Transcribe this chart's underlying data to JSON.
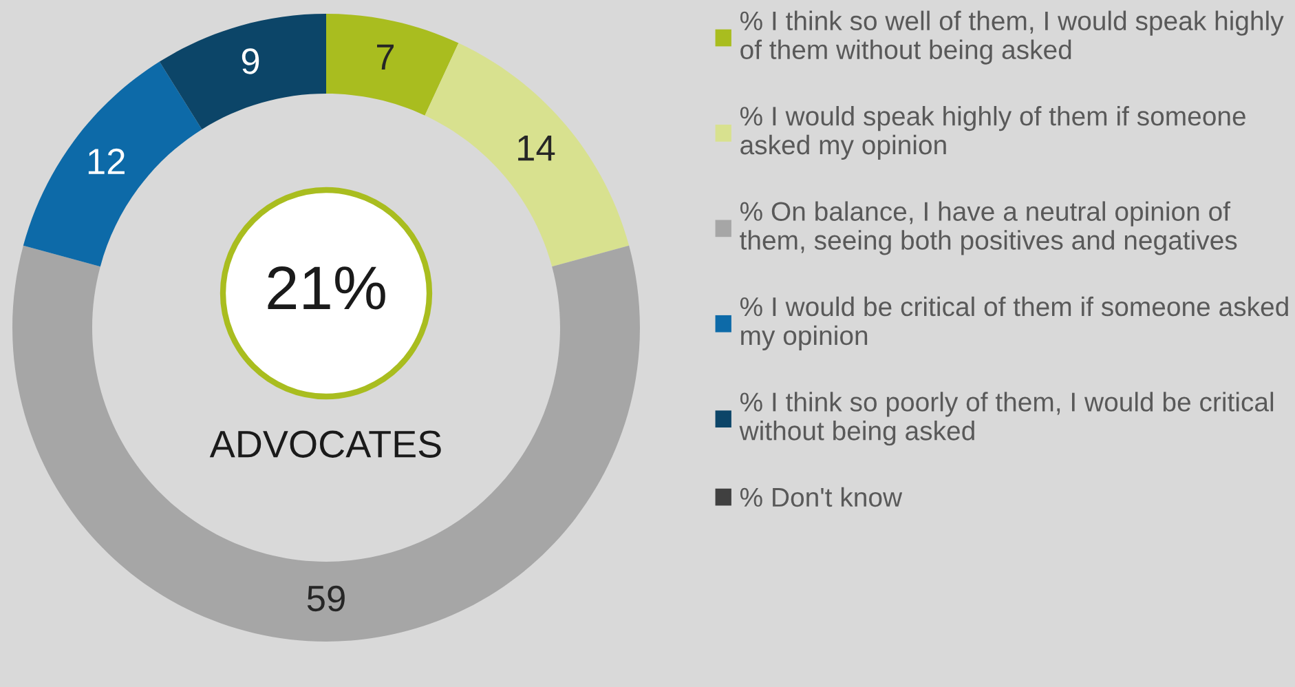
{
  "chart_data": {
    "type": "donut",
    "categories": [
      "% I think so well of them, I would speak highly of them without being asked",
      "% I would speak highly of them if someone asked my opinion",
      "% On balance, I have a neutral opinion of them, seeing both positives and negatives",
      "% I would be critical of them if someone asked my opinion",
      "% I think so poorly of them, I would be critical without being asked",
      "% Don't know"
    ],
    "values": [
      7,
      14,
      59,
      12,
      9,
      0
    ],
    "value_labels": [
      "7",
      "14",
      "59",
      "12",
      "9",
      null
    ],
    "colors": [
      "#a9bd1f",
      "#d8e18f",
      "#a6a6a6",
      "#0d6aa8",
      "#0c4568",
      "#404040"
    ],
    "annotations": [
      "21%",
      "ADVOCATES"
    ],
    "legend": "right"
  }
}
